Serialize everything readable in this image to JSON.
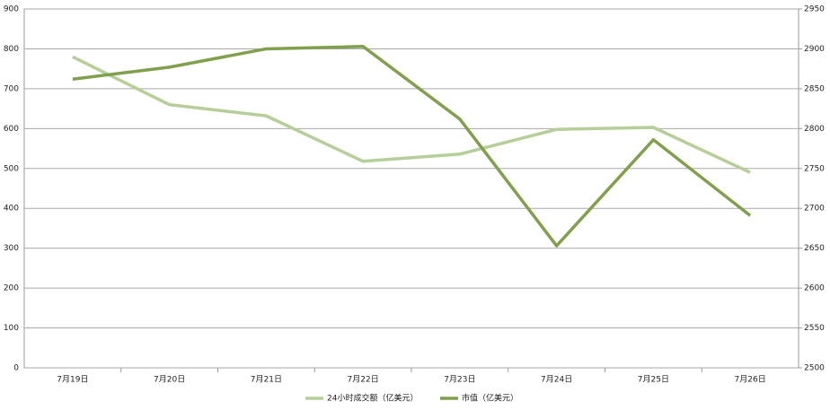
{
  "chart_data": {
    "type": "line",
    "categories": [
      "7月19日",
      "7月20日",
      "7月21日",
      "7月22日",
      "7月23日",
      "7月24日",
      "7月25日",
      "7月26日"
    ],
    "series": [
      {
        "name": "24小时成交额（亿美元）",
        "color": "#b6cf98",
        "values": [
          780,
          660,
          632,
          518,
          536,
          598,
          603,
          490
        ]
      },
      {
        "name": "市值（亿美元）",
        "color": "#80a04c",
        "axis": "y2",
        "values": [
          2862,
          2877,
          2900,
          2903,
          2812,
          2653,
          2786,
          2691
        ]
      }
    ],
    "ylim": [
      0,
      900
    ],
    "yticks": [
      0,
      100,
      200,
      300,
      400,
      500,
      600,
      700,
      800,
      900
    ],
    "y2lim": [
      2500,
      2950
    ],
    "y2ticks": [
      2500,
      2550,
      2600,
      2650,
      2700,
      2750,
      2800,
      2850,
      2900,
      2950
    ],
    "grid": true,
    "legend": "bottom"
  }
}
